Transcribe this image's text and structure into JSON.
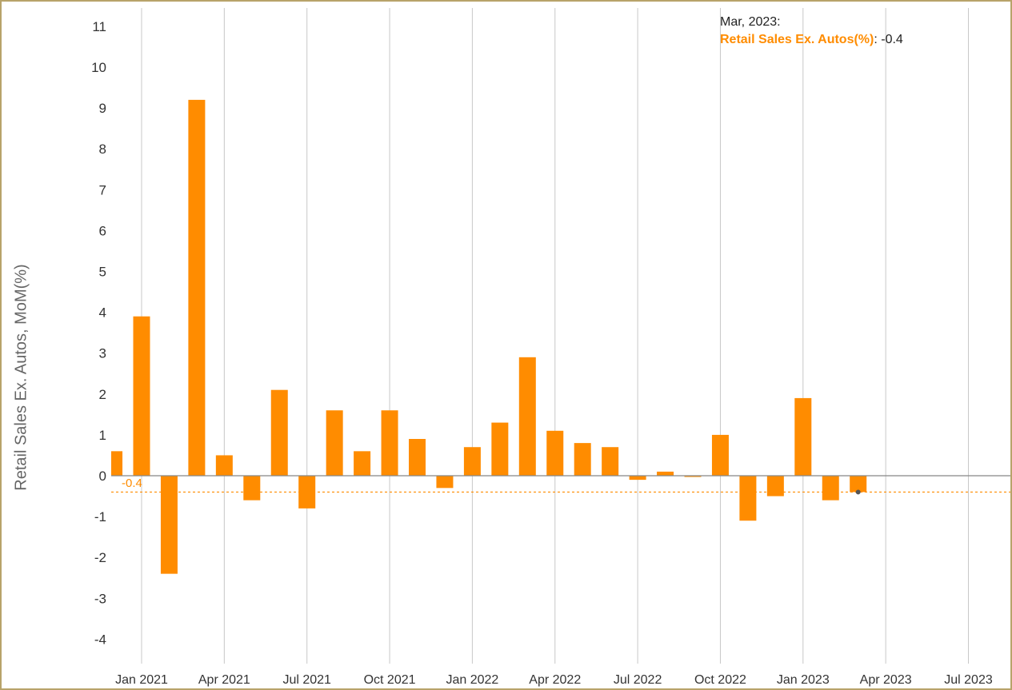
{
  "chart_data": {
    "type": "bar",
    "ylabel": "Retail Sales Ex. Autos, MoM(%)",
    "xlabel": "",
    "ylim": [
      -4.5,
      11.4
    ],
    "y_ticks": [
      -4,
      -3,
      -2,
      -1,
      0,
      1,
      2,
      3,
      4,
      5,
      6,
      7,
      8,
      9,
      10,
      11
    ],
    "x_tick_labels": [
      "Jan 2021",
      "Apr 2021",
      "Jul 2021",
      "Oct 2021",
      "Jan 2022",
      "Apr 2022",
      "Jul 2022",
      "Oct 2022",
      "Jan 2023",
      "Apr 2023",
      "Jul 2023"
    ],
    "x_tick_dates": [
      "2021-01",
      "2021-04",
      "2021-07",
      "2021-10",
      "2022-01",
      "2022-04",
      "2022-07",
      "2022-10",
      "2023-01",
      "2023-04",
      "2023-07"
    ],
    "grid": "vertical",
    "series": [
      {
        "name": "Retail Sales Ex. Autos(%)",
        "color": "#ff8c00",
        "x": [
          "2020-12",
          "2021-01",
          "2021-02",
          "2021-03",
          "2021-04",
          "2021-05",
          "2021-06",
          "2021-07",
          "2021-08",
          "2021-09",
          "2021-10",
          "2021-11",
          "2021-12",
          "2022-01",
          "2022-02",
          "2022-03",
          "2022-04",
          "2022-05",
          "2022-06",
          "2022-07",
          "2022-08",
          "2022-09",
          "2022-10",
          "2022-11",
          "2022-12",
          "2023-01",
          "2023-02",
          "2023-03"
        ],
        "values": [
          0.6,
          3.9,
          -2.4,
          9.2,
          0.5,
          -0.6,
          2.1,
          -0.8,
          1.6,
          0.6,
          1.6,
          0.9,
          -0.3,
          0.7,
          1.3,
          2.9,
          1.1,
          0.8,
          0.7,
          -0.1,
          0.1,
          -0.03,
          1.0,
          -1.1,
          -0.5,
          1.9,
          -0.6,
          -0.4
        ]
      }
    ],
    "reference_line": {
      "value": -0.4,
      "label": "-0.4",
      "color": "#ff8c00"
    }
  },
  "tooltip": {
    "date": "Mar, 2023:",
    "series_name": "Retail Sales Ex. Autos(%)",
    "value": ": -0.4",
    "name_color": "#ff8c00"
  },
  "colors": {
    "bar": "#ff8c00",
    "grid": "#c8c8c8",
    "zero_line": "#888888",
    "frame": "#b8a36a"
  }
}
